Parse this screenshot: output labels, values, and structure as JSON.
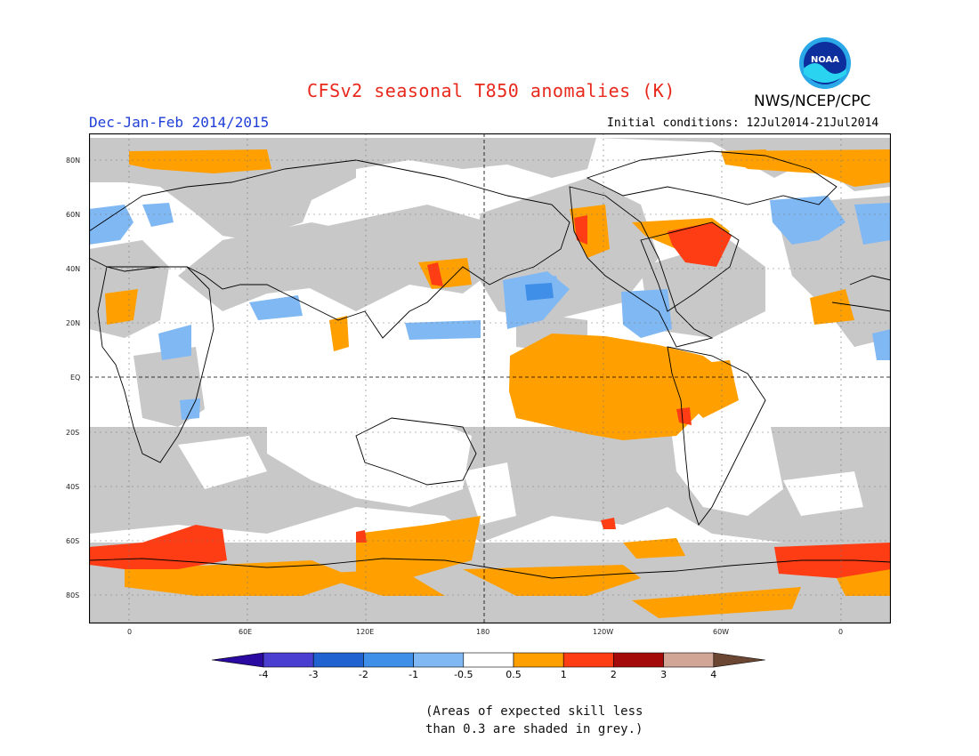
{
  "title": "CFSv2 seasonal T850 anomalies (K)",
  "season": "Dec-Jan-Feb 2014/2015",
  "initial_conditions": "Initial conditions: 12Jul2014-21Jul2014",
  "agency": "NWS/NCEP/CPC",
  "logo_text": "NOAA",
  "lat_labels": [
    "80N",
    "60N",
    "40N",
    "20N",
    "EQ",
    "20S",
    "40S",
    "60S",
    "80S"
  ],
  "lon_labels": [
    "0",
    "60E",
    "120E",
    "180",
    "120W",
    "60W",
    "0"
  ],
  "colorbar": {
    "labels": [
      "-4",
      "-3",
      "-2",
      "-1",
      "-0.5",
      "0.5",
      "1",
      "2",
      "3",
      "4"
    ],
    "colors": [
      "#2a0aa0",
      "#4a3ed0",
      "#1f62d0",
      "#3f8ee8",
      "#80b8f4",
      "#ffffff",
      "#ff9f00",
      "#ff3d14",
      "#a50a0a",
      "#d2a696",
      "#6b4632"
    ]
  },
  "skill_color": "#c8c8c8",
  "note_line1": "(Areas of expected skill less",
  "note_line2": "than 0.3 are shaded in grey.)"
}
